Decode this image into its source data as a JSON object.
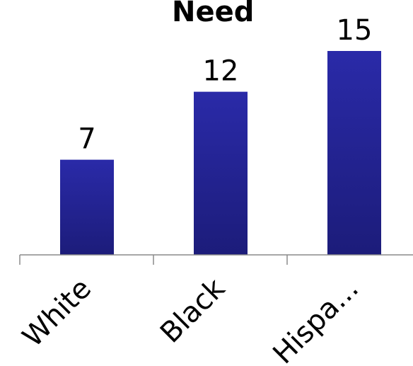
{
  "chart_data": {
    "type": "bar",
    "title": "Need",
    "categories": [
      "White",
      "Black",
      "Hispa..."
    ],
    "values": [
      7,
      12,
      15
    ],
    "data_labels": [
      "7",
      "12",
      "15"
    ],
    "xlabel": "",
    "ylabel": "",
    "ylim": [
      0,
      15
    ],
    "grid": false,
    "legend": "none",
    "bar_color_top": "#2a2aa8",
    "bar_color_bottom": "#1c1c7a",
    "axis_color": "#8a8a8a"
  }
}
